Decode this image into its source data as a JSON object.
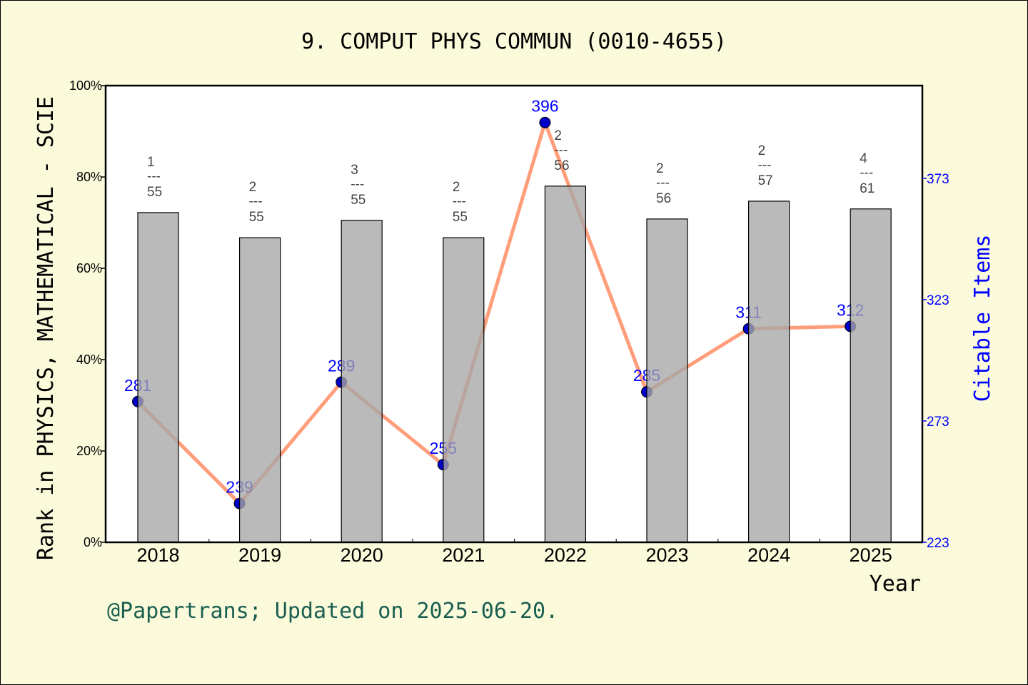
{
  "chart_data": {
    "type": "bar+line",
    "title": "9. COMPUT PHYS COMMUN (0010-4655)",
    "xlabel": "Year",
    "ylabel": "Rank in PHYSICS, MATHEMATICAL - SCIE",
    "y2label": "Citable Items",
    "categories": [
      "2018",
      "2019",
      "2020",
      "2021",
      "2022",
      "2023",
      "2024",
      "2025"
    ],
    "bar_values_percent": [
      72.2,
      66.7,
      70.5,
      66.7,
      78.0,
      70.8,
      74.7,
      73.0
    ],
    "rank_labels": [
      {
        "rank": "1",
        "total": "55"
      },
      {
        "rank": "2",
        "total": "55"
      },
      {
        "rank": "3",
        "total": "55"
      },
      {
        "rank": "2",
        "total": "55"
      },
      {
        "rank": "2",
        "total": "56"
      },
      {
        "rank": "2",
        "total": "56"
      },
      {
        "rank": "2",
        "total": "57"
      },
      {
        "rank": "4",
        "total": "61"
      }
    ],
    "fraction_bar": "---",
    "line_values": [
      281,
      239,
      289,
      255,
      396,
      285,
      311,
      312
    ],
    "line_labels": [
      "281",
      "239",
      "289",
      "255",
      "396",
      "285",
      "311",
      "312"
    ],
    "ylim": [
      0,
      100
    ],
    "yticks": [
      "0%",
      "20%",
      "40%",
      "60%",
      "80%",
      "100%"
    ],
    "y2lim": [
      223,
      411.2
    ],
    "y2ticks": [
      "223",
      "273",
      "323",
      "373"
    ],
    "grid": false,
    "colors": {
      "bar": "#b8b9ba",
      "line": "#ff9e7a",
      "point": "#0000c8",
      "point_label": "#0000ff",
      "right_axis": "#0000ff",
      "footer": "#1a5e50",
      "background": "#fbfbdc"
    }
  },
  "footer": "@Papertrans; Updated on 2025-06-20."
}
